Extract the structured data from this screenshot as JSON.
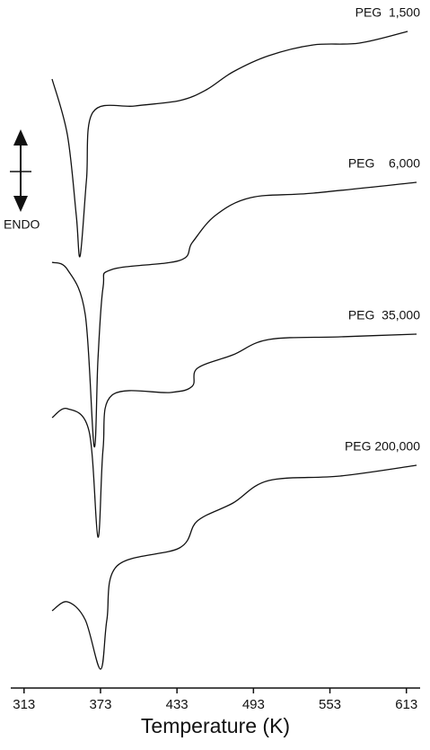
{
  "chart_data": {
    "type": "line",
    "xlabel": "Temperature (K)",
    "annotation": "ENDO",
    "xlim": [
      304,
      628
    ],
    "xticks": [
      313,
      373,
      433,
      493,
      553,
      613
    ],
    "ylim": [
      0,
      770
    ],
    "color": "#111111",
    "series": [
      {
        "name": "PEG  1,500",
        "x": [
          335,
          347,
          354,
          357,
          362,
          367,
          400,
          435,
          456,
          477,
          505,
          540,
          576,
          614
        ],
        "values": [
          682,
          620,
          530,
          485,
          570,
          645,
          652,
          658,
          670,
          690,
          708,
          720,
          722,
          735
        ]
      },
      {
        "name": "PEG    6,000",
        "x": [
          335,
          347,
          361,
          368,
          371,
          375,
          382,
          435,
          445,
          463,
          491,
          540,
          621
        ],
        "values": [
          478,
          470,
          420,
          273,
          370,
          450,
          470,
          480,
          500,
          530,
          550,
          555,
          567
        ]
      },
      {
        "name": "PEG  35,000",
        "x": [
          335,
          347,
          364,
          371,
          375,
          382,
          428,
          445,
          449,
          477,
          505,
          561,
          621
        ],
        "values": [
          305,
          315,
          290,
          172,
          270,
          330,
          333,
          340,
          360,
          375,
          392,
          395,
          398
        ]
      },
      {
        "name": "PEG 200,000",
        "x": [
          335,
          347,
          361,
          373,
          378,
          386,
          435,
          449,
          477,
          505,
          561,
          621
        ],
        "values": [
          90,
          100,
          80,
          25,
          80,
          140,
          160,
          190,
          210,
          235,
          240,
          252
        ]
      }
    ]
  }
}
